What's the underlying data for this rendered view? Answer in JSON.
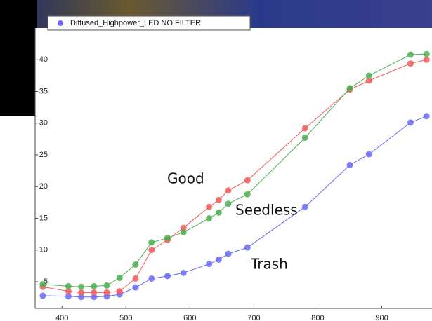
{
  "chart_data": {
    "type": "line",
    "x": [
      370,
      410,
      430,
      450,
      470,
      490,
      515,
      540,
      565,
      590,
      630,
      645,
      660,
      690,
      780,
      850,
      880,
      945,
      970
    ],
    "series": [
      {
        "name": "Diffused_Highpower_LED NO FILTER",
        "color": "#6b6bf5",
        "values": [
          2.8,
          2.7,
          2.6,
          2.6,
          2.7,
          3.0,
          4.1,
          5.5,
          5.9,
          6.4,
          7.8,
          8.5,
          9.4,
          10.4,
          16.8,
          23.4,
          25.1,
          30.1,
          31.1
        ]
      },
      {
        "color": "#f05a5a",
        "values": [
          4.2,
          3.5,
          3.3,
          3.3,
          3.3,
          3.5,
          5.5,
          10.0,
          11.6,
          13.5,
          16.8,
          17.9,
          19.4,
          21.0,
          29.2,
          35.3,
          36.7,
          39.4,
          40.0
        ]
      },
      {
        "color": "#4caf50",
        "values": [
          4.6,
          4.3,
          4.2,
          4.3,
          4.4,
          5.6,
          7.7,
          11.2,
          11.9,
          12.8,
          15.0,
          15.9,
          17.3,
          18.8,
          27.7,
          35.5,
          37.5,
          40.8,
          40.9
        ]
      }
    ],
    "annotations": [
      "Good",
      "Seedless",
      "Trash"
    ],
    "xlim": [
      358,
      973
    ],
    "ylim": [
      0.8,
      45
    ],
    "xticks": [
      400,
      500,
      600,
      700,
      800,
      900
    ],
    "yticks": [
      5,
      10,
      15,
      20,
      25,
      30,
      35,
      40
    ]
  }
}
